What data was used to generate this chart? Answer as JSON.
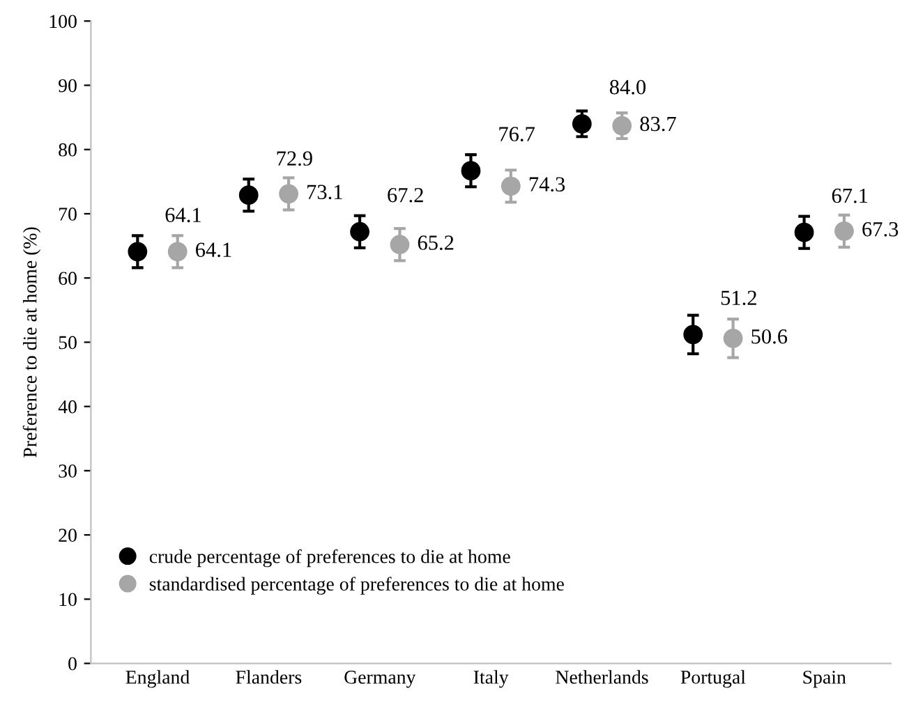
{
  "chart_data": {
    "type": "scatter",
    "ylabel": "Preference to die at home (%)",
    "categories": [
      "England",
      "Flanders",
      "Germany",
      "Italy",
      "Netherlands",
      "Portugal",
      "Spain"
    ],
    "series": [
      {
        "name": "crude percentage of preferences to die at home",
        "color": "#000000",
        "values": [
          64.1,
          72.9,
          67.2,
          76.7,
          84.0,
          51.2,
          67.1
        ],
        "value_labels": [
          "64.1",
          "72.9",
          "67.2",
          "76.7",
          "84.0",
          "51.2",
          "67.1"
        ],
        "errors": [
          2.5,
          2.5,
          2.5,
          2.5,
          2,
          3,
          2.5
        ]
      },
      {
        "name": "standardised percentage of preferences to die at home",
        "color": "#a6a6a6",
        "values": [
          64.1,
          73.1,
          65.2,
          74.3,
          83.7,
          50.6,
          67.3
        ],
        "value_labels": [
          "64.1",
          "73.1",
          "65.2",
          "74.3",
          "83.7",
          "50.6",
          "67.3"
        ],
        "errors": [
          2.5,
          2.5,
          2.5,
          2.5,
          2,
          3,
          2.5
        ]
      }
    ],
    "ylim": [
      0,
      100
    ],
    "yticks": [
      0,
      10,
      20,
      30,
      40,
      50,
      60,
      70,
      80,
      90,
      100
    ],
    "legend": "bottom left",
    "marker": "circle",
    "grid": false
  }
}
